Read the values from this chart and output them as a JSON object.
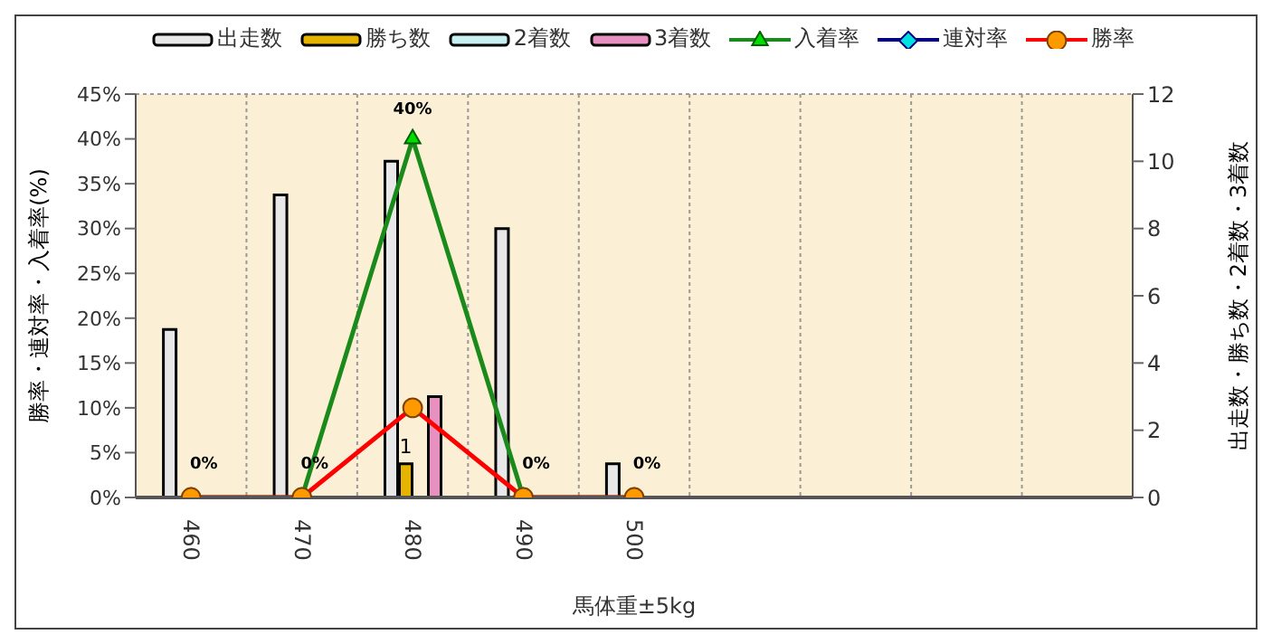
{
  "chart_data": {
    "type": "bar",
    "xlabel": "馬体重±5kg",
    "ylabel": "勝率・連対率・入着率(%)",
    "y2label": "出走数・勝ち数・2着数・3着数",
    "categories": [
      "460",
      "470",
      "480",
      "490",
      "500",
      null,
      null,
      null,
      null
    ],
    "series": [
      {
        "name": "出走数",
        "axis": "y2",
        "color": "#e8e8e8",
        "values": [
          5,
          9,
          10,
          8,
          1,
          null,
          null,
          null,
          null
        ]
      },
      {
        "name": "勝ち数",
        "axis": "y2",
        "color": "#e6b400",
        "values": [
          0,
          0,
          1,
          0,
          0,
          null,
          null,
          null,
          null
        ],
        "value_labels": [
          null,
          null,
          "1",
          null,
          null,
          null,
          null,
          null,
          null
        ]
      },
      {
        "name": "2着数",
        "axis": "y2",
        "color": "#c8f0f0",
        "values": [
          0,
          0,
          0,
          0,
          0,
          null,
          null,
          null,
          null
        ]
      },
      {
        "name": "3着数",
        "axis": "y2",
        "color": "#e890c0",
        "values": [
          0,
          0,
          3,
          0,
          0,
          null,
          null,
          null,
          null
        ]
      },
      {
        "name": "入着率",
        "type": "line",
        "color": "#1a8a1a",
        "marker": "triangle",
        "values": [
          0,
          0,
          40,
          0,
          0,
          null,
          null,
          null,
          null
        ],
        "value_labels": [
          "0%",
          "0%",
          "40%",
          "0%",
          "0%",
          null,
          null,
          null,
          null
        ]
      },
      {
        "name": "連対率",
        "type": "line",
        "color": "#000080",
        "marker": "diamond",
        "values": [
          null,
          null,
          null,
          null,
          null,
          null,
          null,
          null,
          null
        ]
      },
      {
        "name": "勝率",
        "type": "line",
        "color": "#ff0000",
        "marker": "circle",
        "values": [
          0,
          0,
          10,
          0,
          0,
          null,
          null,
          null,
          null
        ]
      }
    ],
    "ylim": [
      0,
      45
    ],
    "yticks": [
      {
        "value": 0,
        "label": "0%"
      },
      {
        "value": 5,
        "label": "5%"
      },
      {
        "value": 10,
        "label": "10%"
      },
      {
        "value": 15,
        "label": "15%"
      },
      {
        "value": 20,
        "label": "20%"
      },
      {
        "value": 25,
        "label": "25%"
      },
      {
        "value": 30,
        "label": "30%"
      },
      {
        "value": 35,
        "label": "35%"
      },
      {
        "value": 40,
        "label": "40%"
      },
      {
        "value": 45,
        "label": "45%"
      }
    ],
    "y2lim": [
      0,
      12
    ],
    "y2ticks": [
      0,
      2,
      4,
      6,
      8,
      10,
      12
    ],
    "grid": true,
    "legend": "top"
  }
}
